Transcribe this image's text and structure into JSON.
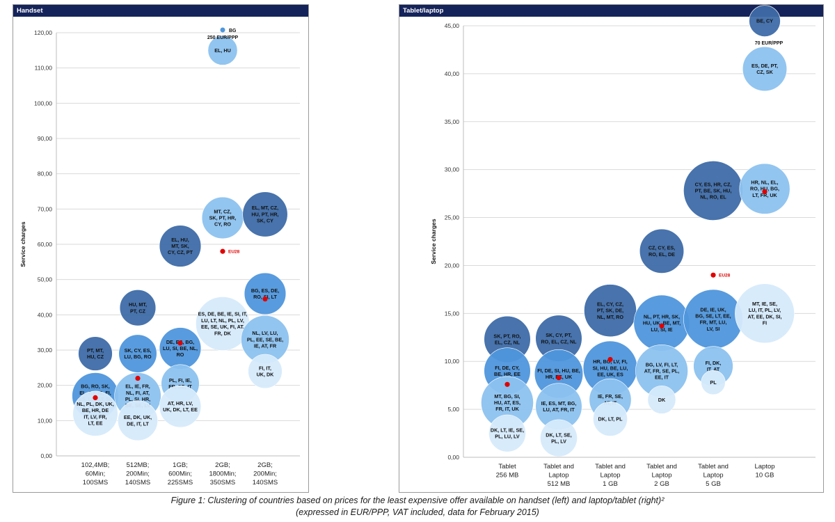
{
  "caption": {
    "line1": "Figure 1: Clustering of countries based on prices for the least expensive offer available on handset (left) and laptop/tablet (right)²",
    "line2": "(expressed in EUR/PPP, VAT included, data for February 2015)"
  },
  "colors": {
    "dark": "#3e6ca8",
    "mid": "#4f96dc",
    "light": "#8cc2ef",
    "pale": "#d6eafb",
    "eu28": "#e00000",
    "title_bar": "#14235a"
  },
  "chart_data": [
    {
      "type": "bubble",
      "title": "Handset",
      "ylabel": "Service charges",
      "ylim": [
        0,
        120
      ],
      "yticks": [
        "0,00",
        "10,00",
        "20,00",
        "30,00",
        "40,00",
        "50,00",
        "60,00",
        "70,00",
        "80,00",
        "90,00",
        "100,00",
        "110,00",
        "120,00"
      ],
      "categories": [
        [
          "102,4MB;",
          "60Min;",
          "100SMS"
        ],
        [
          "512MB;",
          "200Min;",
          "140SMS"
        ],
        [
          "1GB;",
          "600Min;",
          "225SMS"
        ],
        [
          "2GB;",
          "1800Min;",
          "350SMS"
        ],
        [
          "2GB;",
          "200Min;",
          "140SMS"
        ]
      ],
      "bubbles": [
        {
          "x": 0,
          "y": 29,
          "size": 4,
          "tone": "dark",
          "label": [
            "PT, MT,",
            "HU, CZ"
          ]
        },
        {
          "x": 0,
          "y": 17,
          "size": 7.5,
          "tone": "mid",
          "label": [
            "BG, RO, SK,",
            "EL, CY, IE, FI,",
            "ES, LU, AT, SI,",
            "SE"
          ]
        },
        {
          "x": 0,
          "y": 12,
          "size": 7,
          "tone": "pale",
          "label": [
            "NL, PL, DK, UK,",
            "BE, HR, DE",
            "IT, LV, FR,",
            "LT, EE"
          ]
        },
        {
          "x": 1,
          "y": 42,
          "size": 4.5,
          "tone": "dark",
          "label": [
            "HU, MT,",
            "PT, CZ"
          ]
        },
        {
          "x": 1,
          "y": 29,
          "size": 5,
          "tone": "mid",
          "label": [
            "SK, CY, ES,",
            "LU, BG, RO"
          ]
        },
        {
          "x": 1,
          "y": 17,
          "size": 7.5,
          "tone": "light",
          "label": [
            "EL, IE, FR,",
            "NL, FI, AT,",
            "PL, SI, HR,",
            "BE, SE, LV"
          ]
        },
        {
          "x": 1,
          "y": 10,
          "size": 5.5,
          "tone": "pale",
          "label": [
            "EE, DK, UK,",
            "DE, IT, LT"
          ]
        },
        {
          "x": 2,
          "y": 59.5,
          "size": 6,
          "tone": "dark",
          "label": [
            "EL, HU,",
            "MT, SK,",
            "CY, CZ, PT"
          ]
        },
        {
          "x": 2,
          "y": 30.5,
          "size": 6,
          "tone": "mid",
          "label": [
            "DE, ES, BG,",
            "LU, SI, BE, NL,",
            "RO"
          ]
        },
        {
          "x": 2,
          "y": 20.5,
          "size": 5,
          "tone": "light",
          "label": [
            "PL, FI, IE,",
            "FR, SE, IT"
          ]
        },
        {
          "x": 2,
          "y": 14,
          "size": 6,
          "tone": "pale",
          "label": [
            "AT, HR, LV,",
            "UK, DK, LT, EE"
          ]
        },
        {
          "x": 3,
          "y": 115,
          "size": 3,
          "tone": "light",
          "label": [
            "EL, HU"
          ]
        },
        {
          "x": 3,
          "y": 67.5,
          "size": 6,
          "tone": "light",
          "label": [
            "MT, CZ,",
            "SK, PT, HR,",
            "CY, RO"
          ]
        },
        {
          "x": 3,
          "y": 37.5,
          "size": 10,
          "tone": "pale",
          "label": [
            "ES, DE, BE, IE, SI, IT,",
            "LU, LT, NL, PL, LV,",
            "EE, SE, UK, FI, AT,",
            "FR, DK"
          ]
        },
        {
          "x": 4,
          "y": 68.5,
          "size": 7,
          "tone": "dark",
          "label": [
            "EL, MT, CZ,",
            "HU, PT, HR,",
            "SK, CY"
          ]
        },
        {
          "x": 4,
          "y": 46,
          "size": 6,
          "tone": "mid",
          "label": [
            "BG, ES, DE,",
            "RO, SI, LT"
          ]
        },
        {
          "x": 4,
          "y": 33,
          "size": 8,
          "tone": "light",
          "label": [
            "NL, LV, LU,",
            "PL, EE, SE, BE,",
            "IE, AT, FR"
          ]
        },
        {
          "x": 4,
          "y": 24,
          "size": 4,
          "tone": "pale",
          "label": [
            "FI, IT,",
            "UK, DK"
          ]
        }
      ],
      "eu28_points": [
        {
          "x": 0,
          "y": 16.5
        },
        {
          "x": 1,
          "y": 22
        },
        {
          "x": 2,
          "y": 32
        },
        {
          "x": 3,
          "y": 58,
          "label": "EU28"
        },
        {
          "x": 4,
          "y": 44.5
        }
      ],
      "outlier": {
        "x": 3,
        "y": 120,
        "label": [
          "BG",
          "250 EUR/PPP"
        ]
      }
    },
    {
      "type": "bubble",
      "title": "Tablet/laptop",
      "ylabel": "Service charges",
      "ylim": [
        0,
        45
      ],
      "yticks": [
        "0,00",
        "5,00",
        "10,00",
        "15,00",
        "20,00",
        "25,00",
        "30,00",
        "35,00",
        "40,00",
        "45,00"
      ],
      "categories": [
        [
          "Tablet",
          "256 MB"
        ],
        [
          "Tablet and",
          "Laptop",
          "512 MB"
        ],
        [
          "Tablet and",
          "Laptop",
          "1 GB"
        ],
        [
          "Tablet and",
          "Laptop",
          "2 GB"
        ],
        [
          "Tablet and",
          "Laptop",
          "5 GB"
        ],
        [
          "Laptop",
          "10 GB"
        ]
      ],
      "bubbles": [
        {
          "x": 0,
          "y": 12.3,
          "size": 5.5,
          "tone": "dark",
          "label": [
            "SK, PT, RO,",
            "EL, CZ, NL"
          ]
        },
        {
          "x": 0,
          "y": 9,
          "size": 5.5,
          "tone": "mid",
          "label": [
            "FI, DE, CY,",
            "BE, HR, EE"
          ]
        },
        {
          "x": 0,
          "y": 5.7,
          "size": 7,
          "tone": "light",
          "label": [
            "MT, BG, SI,",
            "HU, AT, ES,",
            "FR, IT, UK"
          ]
        },
        {
          "x": 0,
          "y": 2.5,
          "size": 3.5,
          "tone": "pale",
          "label": [
            "DK, LT, IE, SE,",
            "PL, LU, LV"
          ]
        },
        {
          "x": 1,
          "y": 12.4,
          "size": 5.5,
          "tone": "dark",
          "label": [
            "SK, CY, PT,",
            "RO, EL, CZ, NL"
          ]
        },
        {
          "x": 1,
          "y": 8.7,
          "size": 6,
          "tone": "mid",
          "label": [
            "FI, DE, SI, HU, BE,",
            "HR, EE, UK"
          ]
        },
        {
          "x": 1,
          "y": 5.3,
          "size": 5.5,
          "tone": "light",
          "label": [
            "IE, ES, MT, BG,",
            "LU, AT, FR, IT"
          ]
        },
        {
          "x": 1,
          "y": 2,
          "size": 3.5,
          "tone": "pale",
          "label": [
            "DK, LT, SE,",
            "PL, LV"
          ]
        },
        {
          "x": 2,
          "y": 15.3,
          "size": 7,
          "tone": "dark",
          "label": [
            "EL, CY, CZ,",
            "PT, SK, DE,",
            "NL, MT, RO"
          ]
        },
        {
          "x": 2,
          "y": 9.3,
          "size": 7.5,
          "tone": "mid",
          "label": [
            "HR, BG, LV, FI,",
            "SI, HU, BE, LU,",
            "EE, UK, ES"
          ]
        },
        {
          "x": 2,
          "y": 6,
          "size": 4.5,
          "tone": "light",
          "label": [
            "IE, FR, SE,",
            "AT, IT"
          ]
        },
        {
          "x": 2,
          "y": 4,
          "size": 3,
          "tone": "pale",
          "label": [
            "DK, LT, PL"
          ]
        },
        {
          "x": 3,
          "y": 21.5,
          "size": 5,
          "tone": "dark",
          "label": [
            "CZ, CY, ES,",
            "RO, EL, DE"
          ]
        },
        {
          "x": 3,
          "y": 14,
          "size": 8,
          "tone": "mid",
          "label": [
            "NL, PT, HR, SK,",
            "HU, UK, BE, MT,",
            "LU, SI, IE"
          ]
        },
        {
          "x": 3,
          "y": 9,
          "size": 7,
          "tone": "light",
          "label": [
            "BG, LV, FI, LT,",
            "AT, FR, SE, PL,",
            "EE, IT"
          ]
        },
        {
          "x": 3,
          "y": 6,
          "size": 2,
          "tone": "pale",
          "label": [
            "DK"
          ]
        },
        {
          "x": 4,
          "y": 27.8,
          "size": 9,
          "tone": "dark",
          "label": [
            "CY, ES, HR, CZ,",
            "PT, BE, SK, HU,",
            "NL, RO, EL"
          ]
        },
        {
          "x": 4,
          "y": 14.4,
          "size": 9,
          "tone": "mid",
          "label": [
            "DE, IE, UK,",
            "BG, SE, LT, EE,",
            "FR, MT, LU,",
            "LV, SI"
          ]
        },
        {
          "x": 4,
          "y": 9.5,
          "size": 4,
          "tone": "light",
          "label": [
            "FI, DK,",
            "IT, AT"
          ]
        },
        {
          "x": 4,
          "y": 7.8,
          "size": 1.5,
          "tone": "pale",
          "label": [
            "PL"
          ]
        },
        {
          "x": 5,
          "y": 45.5,
          "size": 2.5,
          "tone": "dark",
          "label": [
            "BE, CY"
          ]
        },
        {
          "x": 5,
          "y": 40.5,
          "size": 5,
          "tone": "light",
          "label": [
            "ES, DE, PT,",
            "CZ, SK"
          ]
        },
        {
          "x": 5,
          "y": 28,
          "size": 6.5,
          "tone": "light",
          "label": [
            "HR, NL, EL,",
            "RO, HU, BG,",
            "LT, FR, UK"
          ]
        },
        {
          "x": 5,
          "y": 15,
          "size": 9,
          "tone": "pale",
          "label": [
            "MT, IE, SE,",
            "LU, IT, PL, LV,",
            "AT, EE, DK, SI,",
            "FI"
          ]
        }
      ],
      "eu28_points": [
        {
          "x": 0,
          "y": 7.6
        },
        {
          "x": 1,
          "y": 8.3
        },
        {
          "x": 2,
          "y": 10.2
        },
        {
          "x": 3,
          "y": 13.7
        },
        {
          "x": 4,
          "y": 19,
          "label": "EU28"
        },
        {
          "x": 5,
          "y": 27.7
        }
      ],
      "outlier": {
        "x": 5,
        "y": 45,
        "label": [
          "70 EUR/PPP"
        ]
      }
    }
  ]
}
